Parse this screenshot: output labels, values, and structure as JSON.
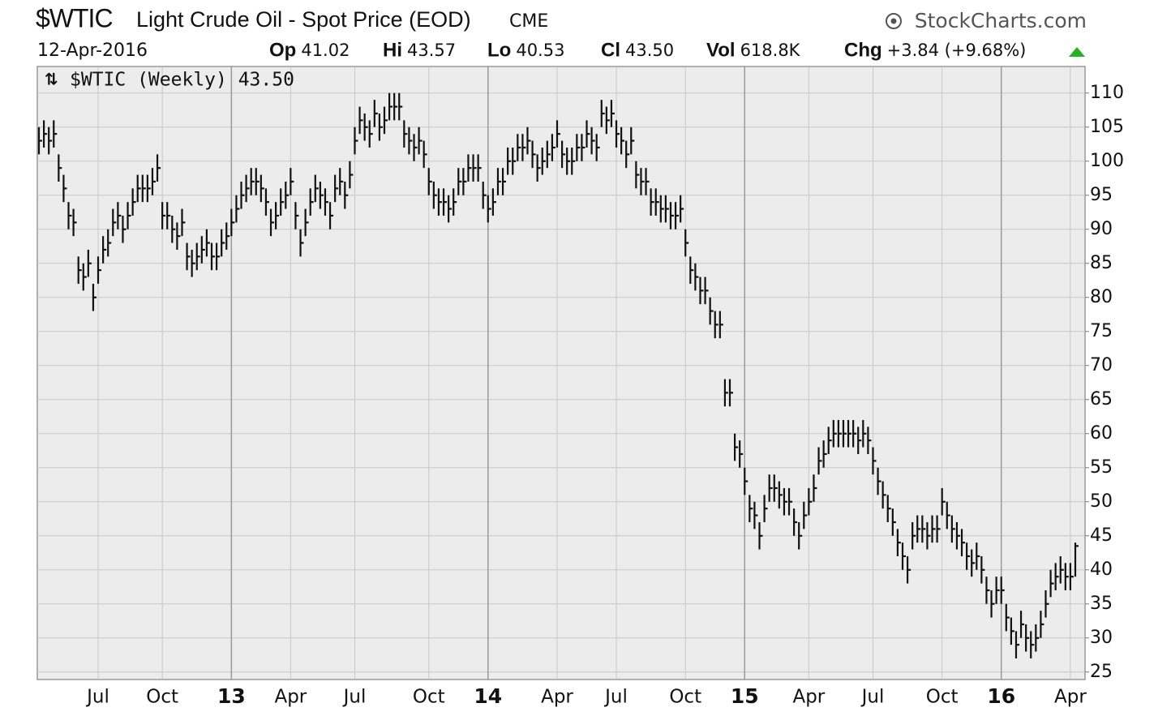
{
  "chart_data": {
    "type": "hlc",
    "title": "$WTIC",
    "subtitle": "Light Crude Oil - Spot Price (EOD)",
    "exchange": "CME",
    "source": "StockCharts.com",
    "date": "12-Apr-2016",
    "stats": [
      {
        "label": "Op",
        "value": "41.02"
      },
      {
        "label": "Hi",
        "value": "43.57"
      },
      {
        "label": "Lo",
        "value": "40.53"
      },
      {
        "label": "Cl",
        "value": "43.50"
      },
      {
        "label": "Vol",
        "value": "618.8K"
      },
      {
        "label": "Chg",
        "value": "+3.84 (+9.68%)"
      }
    ],
    "legend": "$WTIC (Weekly) 43.50",
    "color": "#111111",
    "grid": true,
    "ylim": [
      23.9,
      113.9
    ],
    "yticks": [
      25,
      30,
      35,
      40,
      45,
      50,
      55,
      60,
      65,
      70,
      75,
      80,
      85,
      90,
      95,
      100,
      105,
      110
    ],
    "categories": [
      null,
      null,
      null,
      null,
      null,
      null,
      null,
      null,
      null,
      null,
      null,
      null,
      "Jul",
      null,
      null,
      null,
      null,
      null,
      null,
      null,
      null,
      null,
      null,
      null,
      null,
      "Oct",
      null,
      null,
      null,
      null,
      null,
      null,
      null,
      null,
      null,
      null,
      null,
      null,
      null,
      "13",
      null,
      null,
      null,
      null,
      null,
      null,
      null,
      null,
      null,
      null,
      null,
      "Apr",
      null,
      null,
      null,
      null,
      null,
      null,
      null,
      null,
      null,
      null,
      null,
      null,
      "Jul",
      null,
      null,
      null,
      null,
      null,
      null,
      null,
      null,
      null,
      null,
      null,
      null,
      null,
      null,
      "Oct",
      null,
      null,
      null,
      null,
      null,
      null,
      null,
      null,
      null,
      null,
      null,
      "14",
      null,
      null,
      null,
      null,
      null,
      null,
      null,
      null,
      null,
      null,
      null,
      null,
      null,
      "Apr",
      null,
      null,
      null,
      null,
      null,
      null,
      null,
      null,
      null,
      null,
      null,
      "Jul",
      null,
      null,
      null,
      null,
      null,
      null,
      null,
      null,
      null,
      null,
      null,
      null,
      null,
      "Oct",
      null,
      null,
      null,
      null,
      null,
      null,
      null,
      null,
      null,
      null,
      null,
      "15",
      null,
      null,
      null,
      null,
      null,
      null,
      null,
      null,
      null,
      null,
      null,
      null,
      "Apr",
      null,
      null,
      null,
      null,
      null,
      null,
      null,
      null,
      null,
      null,
      null,
      null,
      "Jul",
      null,
      null,
      null,
      null,
      null,
      null,
      null,
      null,
      null,
      null,
      null,
      null,
      null,
      "Oct",
      null,
      null,
      null,
      null,
      null,
      null,
      null,
      null,
      null,
      null,
      null,
      "16",
      null,
      null,
      null,
      null,
      null,
      null,
      null,
      null,
      null,
      null,
      null,
      null,
      null,
      "Apr",
      null
    ],
    "high": [
      105,
      106,
      105,
      106,
      101,
      98,
      94,
      93,
      86,
      85,
      87,
      82,
      86,
      89,
      90,
      93,
      94,
      92,
      94,
      96,
      98,
      98,
      98,
      99,
      101,
      94,
      94,
      92,
      91,
      93,
      88,
      87,
      88,
      89,
      90,
      88,
      88,
      90,
      91,
      93,
      95,
      97,
      98,
      99,
      99,
      98,
      96,
      93,
      94,
      96,
      97,
      99,
      94,
      90,
      93,
      96,
      98,
      97,
      96,
      94,
      98,
      99,
      97,
      100,
      105,
      108,
      107,
      106,
      109,
      107,
      108,
      110,
      110,
      110,
      106,
      105,
      104,
      105,
      103,
      99,
      97,
      96,
      96,
      95,
      96,
      99,
      99,
      101,
      101,
      101,
      97,
      95,
      96,
      99,
      99,
      102,
      102,
      104,
      104,
      105,
      103,
      101,
      102,
      103,
      104,
      106,
      103,
      102,
      102,
      104,
      104,
      106,
      105,
      104,
      109,
      108,
      109,
      106,
      105,
      103,
      105,
      100,
      99,
      99,
      96,
      96,
      95,
      95,
      94,
      94,
      95,
      90,
      86,
      85,
      83,
      83,
      80,
      78,
      78,
      68,
      68,
      60,
      59,
      55,
      51,
      50,
      47,
      51,
      54,
      54,
      53,
      52,
      52,
      49,
      47,
      50,
      52,
      54,
      58,
      59,
      61,
      62,
      62,
      62,
      62,
      62,
      61,
      62,
      61,
      58,
      55,
      53,
      51,
      49,
      46,
      44,
      42,
      47,
      48,
      48,
      47,
      48,
      48,
      52,
      50,
      48,
      47,
      46,
      44,
      43,
      44,
      42,
      39,
      37,
      39,
      39,
      35,
      33,
      31,
      34,
      32,
      31,
      32,
      34,
      37,
      40,
      41,
      42,
      41,
      41,
      44
    ],
    "low": [
      101,
      102,
      101,
      102,
      97,
      94,
      90,
      89,
      82,
      81,
      83,
      78,
      82,
      85,
      86,
      89,
      90,
      88,
      90,
      92,
      94,
      94,
      94,
      95,
      97,
      90,
      90,
      88,
      87,
      89,
      84,
      83,
      84,
      85,
      86,
      84,
      84,
      86,
      87,
      89,
      91,
      93,
      94,
      95,
      95,
      94,
      92,
      89,
      90,
      92,
      93,
      95,
      90,
      86,
      89,
      92,
      94,
      93,
      92,
      90,
      94,
      95,
      93,
      96,
      101,
      104,
      103,
      102,
      105,
      103,
      104,
      106,
      106,
      106,
      102,
      101,
      100,
      101,
      99,
      95,
      93,
      92,
      92,
      91,
      92,
      95,
      95,
      97,
      97,
      97,
      93,
      91,
      92,
      95,
      95,
      98,
      98,
      100,
      100,
      101,
      99,
      97,
      98,
      99,
      100,
      102,
      99,
      98,
      98,
      100,
      100,
      102,
      101,
      100,
      105,
      104,
      105,
      102,
      101,
      99,
      101,
      96,
      95,
      95,
      92,
      92,
      91,
      91,
      90,
      90,
      91,
      86,
      82,
      81,
      79,
      79,
      76,
      74,
      74,
      64,
      64,
      56,
      55,
      51,
      47,
      46,
      43,
      47,
      50,
      50,
      49,
      48,
      48,
      45,
      43,
      46,
      48,
      50,
      54,
      55,
      57,
      58,
      58,
      58,
      58,
      58,
      57,
      58,
      57,
      54,
      51,
      49,
      47,
      45,
      42,
      40,
      38,
      43,
      44,
      44,
      43,
      44,
      44,
      48,
      46,
      44,
      43,
      42,
      40,
      39,
      40,
      38,
      35,
      33,
      35,
      35,
      31,
      29,
      27,
      30,
      28,
      27,
      28,
      30,
      33,
      36,
      37,
      38,
      37,
      37,
      39
    ],
    "close": [
      103,
      104,
      103,
      104,
      99,
      96,
      92,
      91,
      84,
      83,
      85,
      80,
      84,
      87,
      88,
      91,
      92,
      90,
      92,
      94,
      96,
      96,
      96,
      97,
      99,
      92,
      92,
      90,
      89,
      91,
      86,
      85,
      86,
      87,
      88,
      86,
      86,
      88,
      89,
      91,
      93,
      95,
      96,
      97,
      97,
      96,
      94,
      91,
      92,
      94,
      95,
      97,
      92,
      88,
      91,
      94,
      96,
      95,
      94,
      92,
      96,
      97,
      95,
      98,
      103,
      106,
      105,
      104,
      107,
      105,
      106,
      108,
      108,
      108,
      104,
      103,
      102,
      103,
      101,
      97,
      95,
      94,
      94,
      93,
      94,
      97,
      97,
      99,
      99,
      99,
      95,
      93,
      94,
      97,
      97,
      100,
      100,
      102,
      102,
      103,
      101,
      99,
      100,
      101,
      102,
      104,
      101,
      100,
      100,
      102,
      102,
      104,
      103,
      102,
      107,
      106,
      107,
      104,
      103,
      101,
      103,
      98,
      97,
      97,
      94,
      94,
      93,
      93,
      92,
      92,
      93,
      88,
      84,
      83,
      81,
      81,
      78,
      76,
      76,
      66,
      66,
      58,
      57,
      53,
      49,
      48,
      45,
      49,
      52,
      52,
      51,
      50,
      50,
      47,
      45,
      48,
      50,
      52,
      56,
      57,
      59,
      60,
      60,
      60,
      60,
      60,
      59,
      60,
      59,
      56,
      53,
      51,
      49,
      47,
      44,
      42,
      40,
      45,
      46,
      46,
      45,
      46,
      46,
      50,
      48,
      46,
      45,
      44,
      42,
      41,
      42,
      40,
      37,
      35,
      37,
      37,
      33,
      31,
      29,
      32,
      30,
      29,
      30,
      32,
      35,
      38,
      39,
      40,
      39,
      39,
      43.5
    ]
  }
}
